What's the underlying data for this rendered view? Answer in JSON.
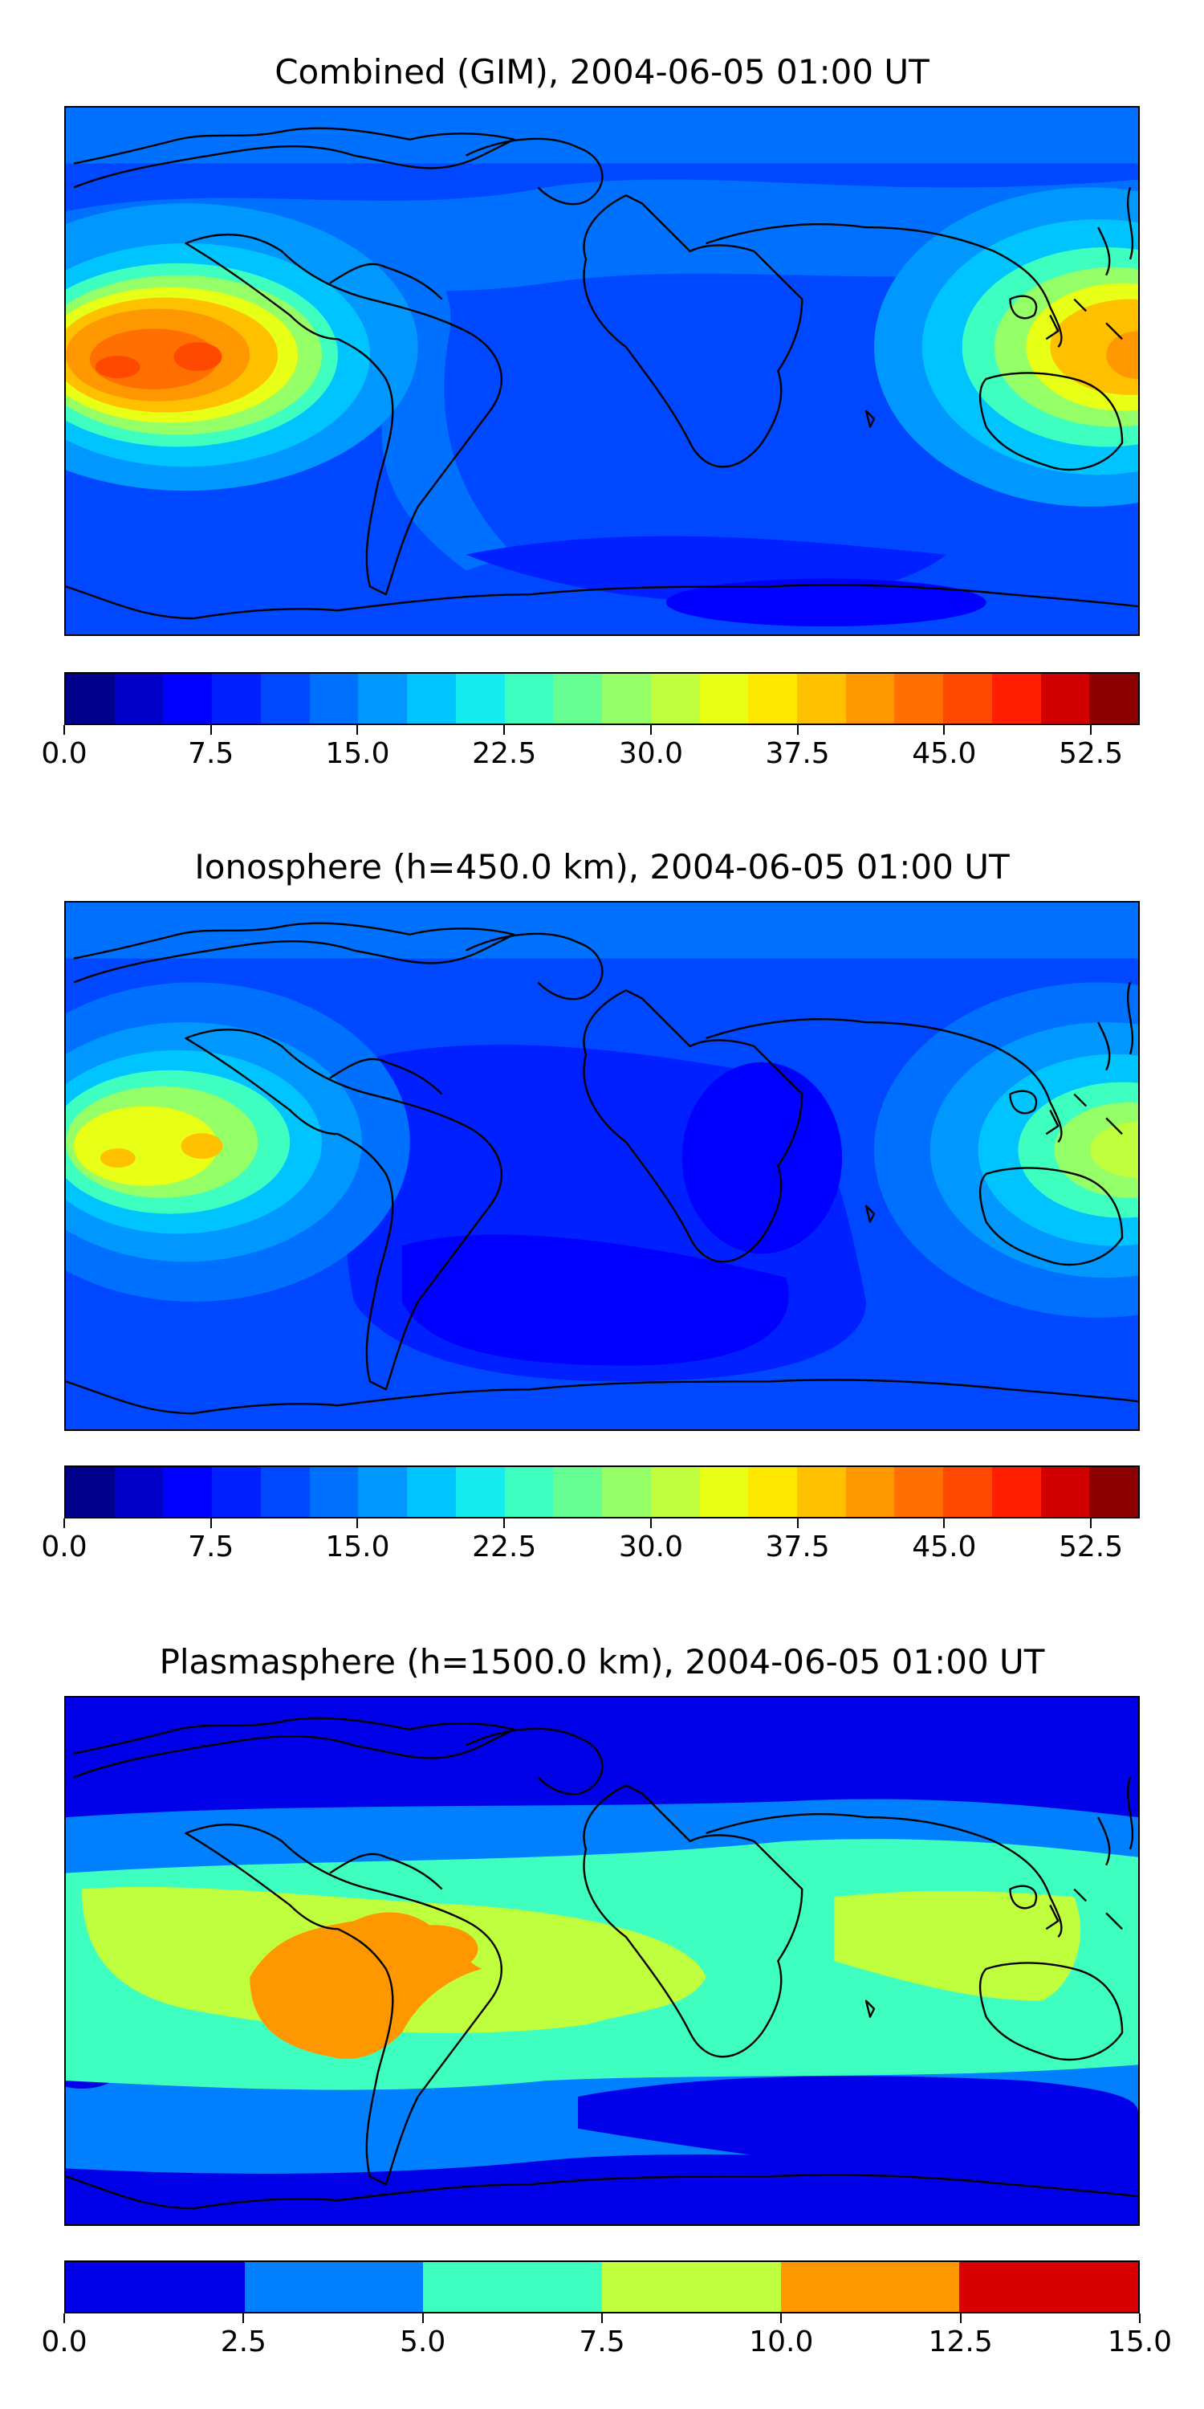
{
  "panels": [
    {
      "title": "Combined (GIM), 2004-06-05 01:00 UT",
      "colorbar": {
        "colors": [
          "#00008b",
          "#0000c8",
          "#0000ff",
          "#0020ff",
          "#0048ff",
          "#0070ff",
          "#0098ff",
          "#00c4ff",
          "#16ecf0",
          "#3effc0",
          "#66ff94",
          "#94ff66",
          "#c0ff3e",
          "#e8ff16",
          "#ffe800",
          "#ffc000",
          "#ff9800",
          "#ff7000",
          "#ff4800",
          "#ff1e00",
          "#d00000",
          "#8b0000"
        ],
        "ticks": [
          "0.0",
          "7.5",
          "15.0",
          "22.5",
          "30.0",
          "37.5",
          "45.0",
          "52.5"
        ],
        "tick_values": [
          0.0,
          7.5,
          15.0,
          22.5,
          30.0,
          37.5,
          45.0,
          52.5
        ],
        "range": [
          0.0,
          55.0
        ]
      }
    },
    {
      "title": "Ionosphere  (h=450.0 km), 2004-06-05 01:00 UT",
      "colorbar": {
        "colors": [
          "#00008b",
          "#0000c8",
          "#0000ff",
          "#0020ff",
          "#0048ff",
          "#0070ff",
          "#0098ff",
          "#00c4ff",
          "#16ecf0",
          "#3effc0",
          "#66ff94",
          "#94ff66",
          "#c0ff3e",
          "#e8ff16",
          "#ffe800",
          "#ffc000",
          "#ff9800",
          "#ff7000",
          "#ff4800",
          "#ff1e00",
          "#d00000",
          "#8b0000"
        ],
        "ticks": [
          "0.0",
          "7.5",
          "15.0",
          "22.5",
          "30.0",
          "37.5",
          "45.0",
          "52.5"
        ],
        "tick_values": [
          0.0,
          7.5,
          15.0,
          22.5,
          30.0,
          37.5,
          45.0,
          52.5
        ],
        "range": [
          0.0,
          55.0
        ]
      }
    },
    {
      "title": "Plasmasphere (h=1500.0 km), 2004-06-05 01:00 UT",
      "colorbar": {
        "colors": [
          "#0000e8",
          "#0080ff",
          "#3effc0",
          "#c0ff3e",
          "#ff9800",
          "#d80000"
        ],
        "ticks": [
          "0.0",
          "2.5",
          "5.0",
          "7.5",
          "10.0",
          "12.5",
          "15.0"
        ],
        "tick_values": [
          0.0,
          2.5,
          5.0,
          7.5,
          10.0,
          12.5,
          15.0
        ],
        "range": [
          0.0,
          15.0
        ]
      }
    }
  ]
}
